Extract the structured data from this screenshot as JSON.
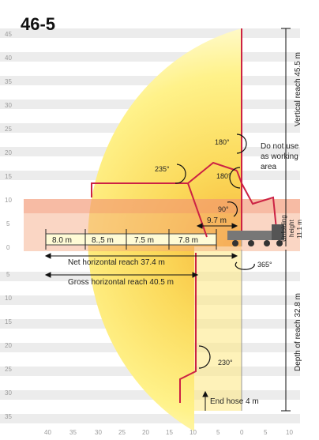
{
  "title": "46-5",
  "y_ticks_top": [
    "45",
    "40",
    "35",
    "30",
    "25",
    "20",
    "15",
    "10",
    "5",
    "0"
  ],
  "y_ticks_bottom": [
    "5",
    "10",
    "15",
    "20",
    "25",
    "30",
    "35"
  ],
  "x_ticks": [
    "40",
    "35",
    "30",
    "25",
    "20",
    "15",
    "10",
    "5",
    "0",
    "5",
    "10"
  ],
  "segments": [
    "8.0 m",
    "8.,5 m",
    "7.5 m",
    "7.8 m"
  ],
  "net_reach": "Net horizontal reach 37.4 m",
  "gross_reach": "Gross horizontal reach 40.5 m",
  "vertical_reach": "Vertical reach 45.5 m",
  "depth_reach": "Depth of reach 32.8 m",
  "unfolding_height": [
    "Unfolding",
    "height",
    "11.1 m"
  ],
  "warning": [
    "Do not use",
    "as working",
    "area"
  ],
  "angles": {
    "a180_top": "180°",
    "a235": "235°",
    "a180_mid": "180°",
    "a90": "90°",
    "a365": "365°",
    "a230": "230°"
  },
  "dim_97": "9.7 m",
  "end_hose": "End hose 4 m",
  "colors": {
    "yellow": "#fff2a0",
    "orange": "#f4a37d",
    "boom": "#cc2244"
  }
}
